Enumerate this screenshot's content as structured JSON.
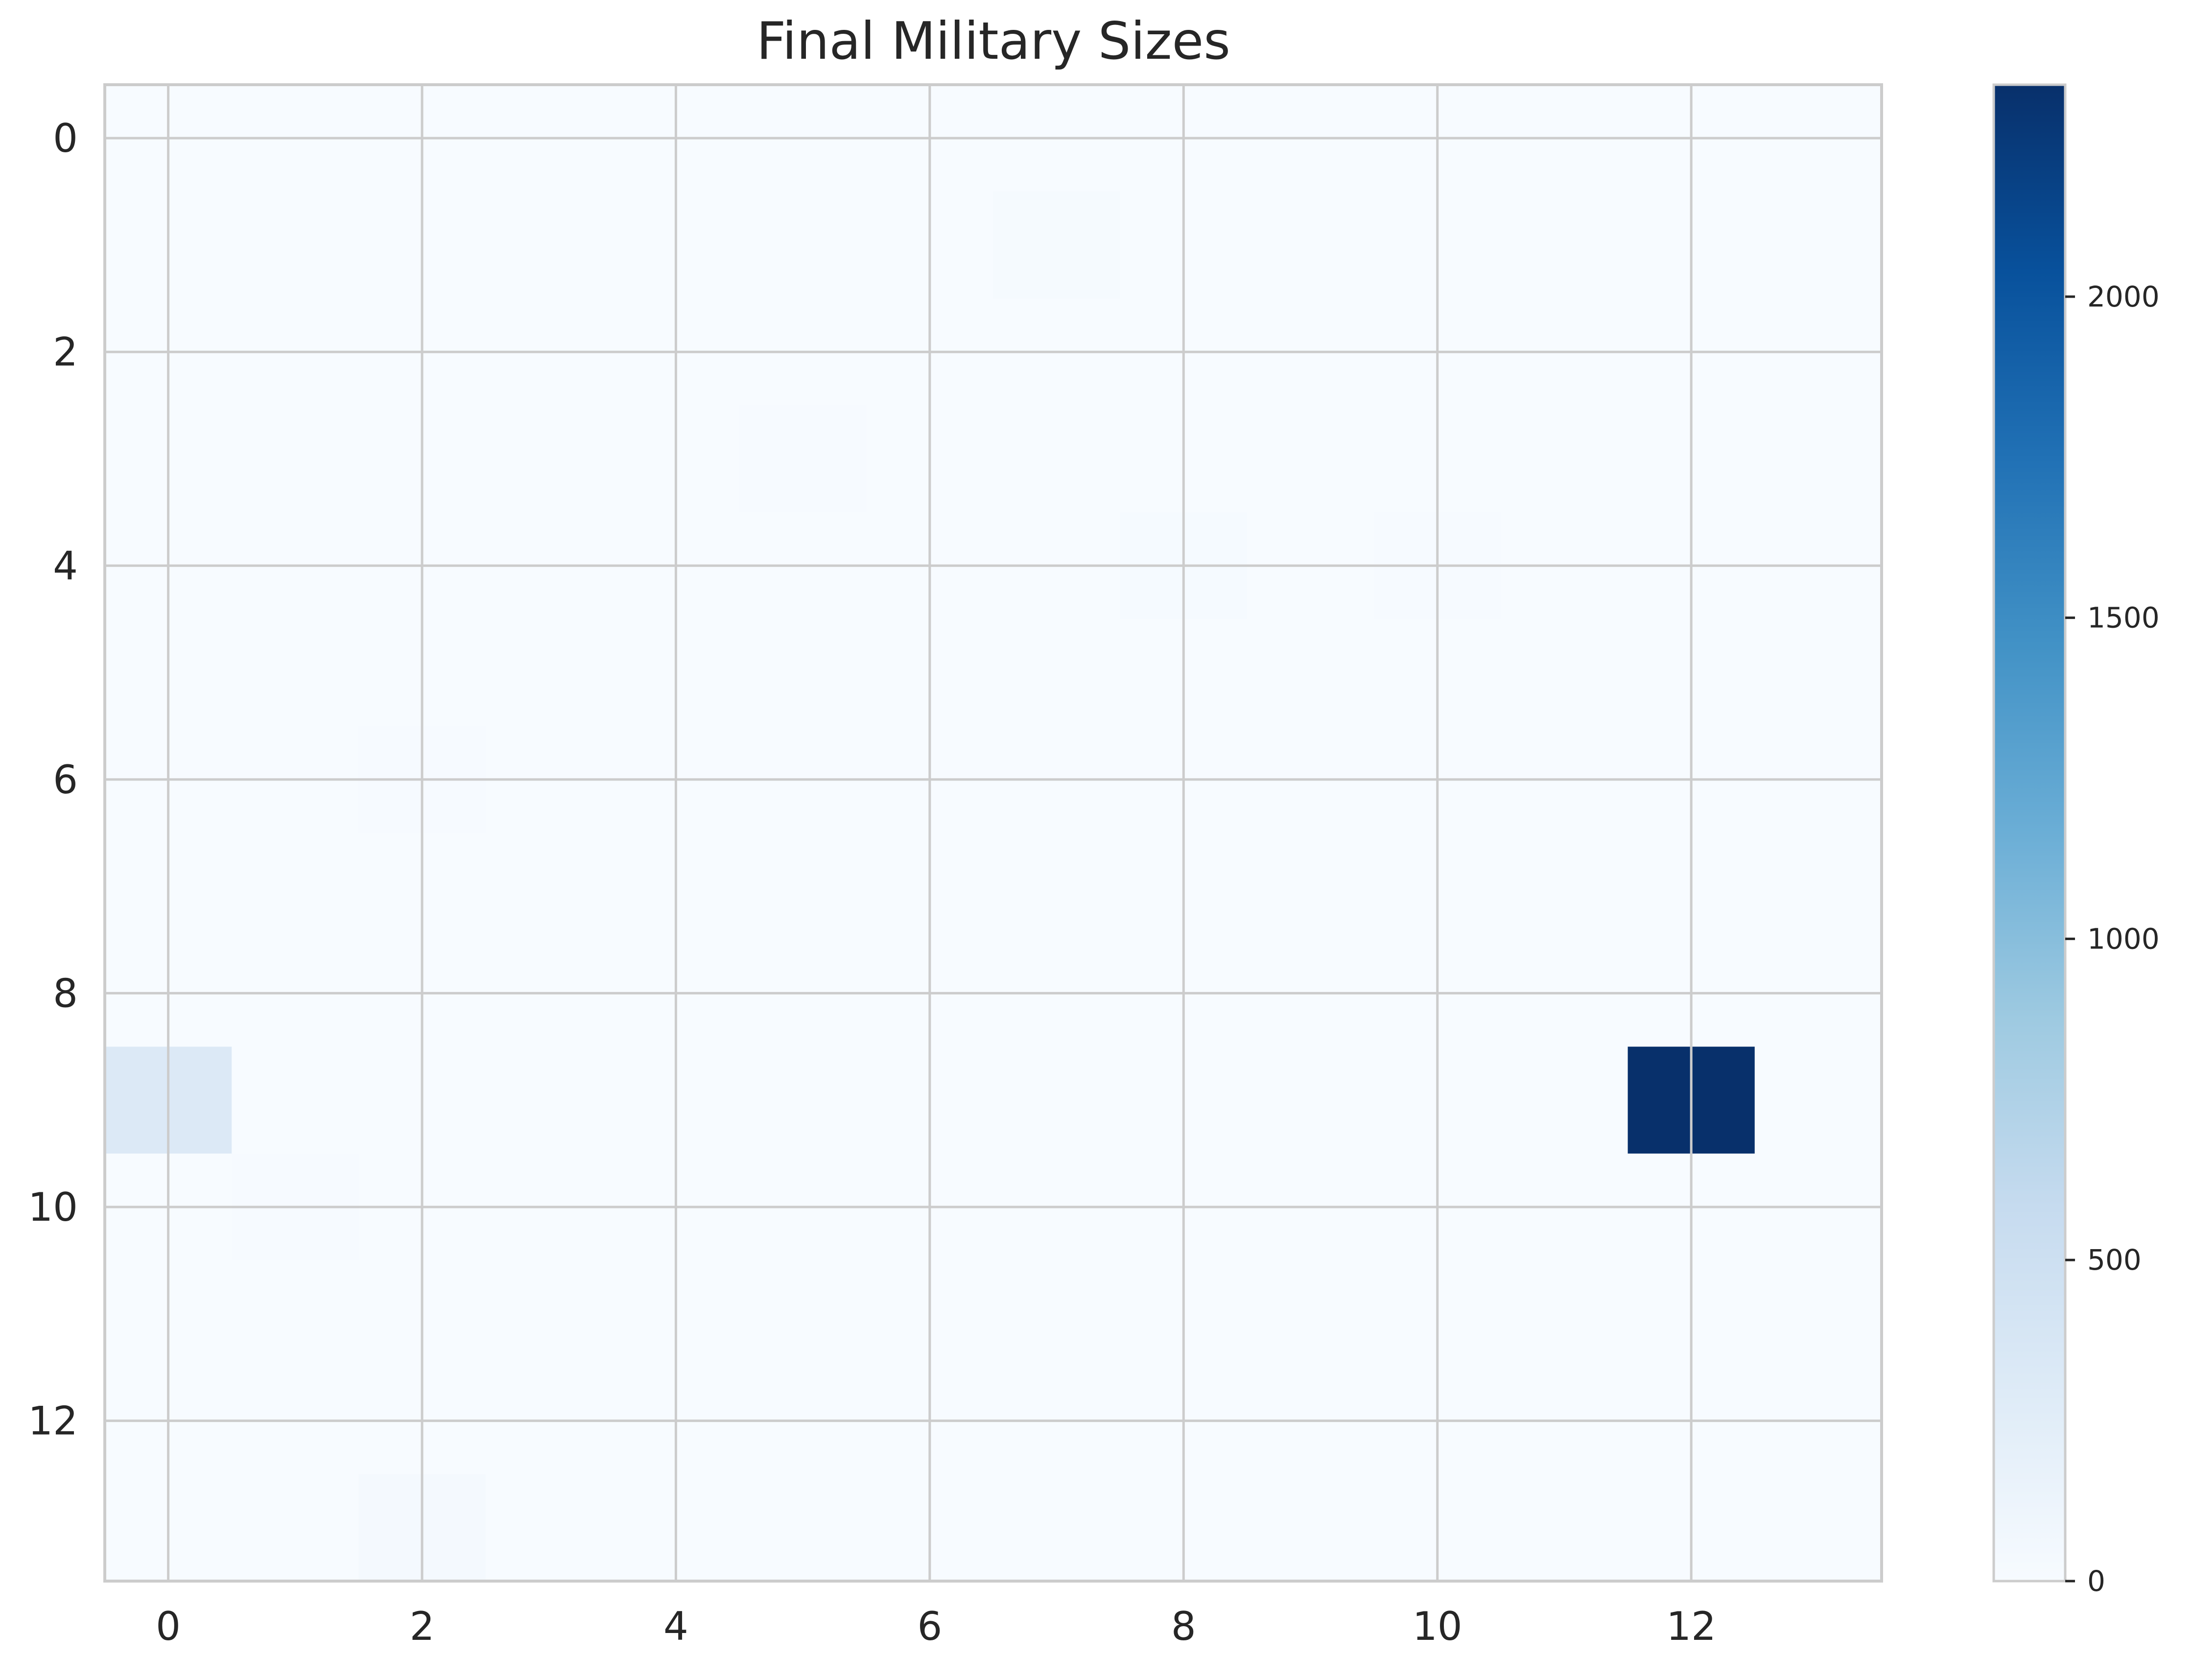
{
  "chart_data": {
    "type": "heatmap",
    "title": "Final Military Sizes",
    "xlabel": "",
    "ylabel": "",
    "shape": [
      14,
      14
    ],
    "xlim": [
      -0.5,
      13.5
    ],
    "ylim": [
      13.5,
      -0.5
    ],
    "x_ticks": [
      0,
      2,
      4,
      6,
      8,
      10,
      12
    ],
    "y_ticks": [
      0,
      2,
      4,
      6,
      8,
      10,
      12
    ],
    "x_tick_labels": [
      "0",
      "2",
      "4",
      "6",
      "8",
      "10",
      "12"
    ],
    "y_tick_labels": [
      "0",
      "2",
      "4",
      "6",
      "8",
      "10",
      "12"
    ],
    "grid": true,
    "colormap": "Blues",
    "value_range": [
      0,
      2330
    ],
    "colorbar": {
      "ticks": [
        0,
        500,
        1000,
        1500,
        2000
      ],
      "tick_labels": [
        "0",
        "500",
        "1000",
        "1500",
        "2000"
      ]
    },
    "background_value": 0,
    "cells": [
      {
        "row": 1,
        "col": 7,
        "value": 20
      },
      {
        "row": 3,
        "col": 5,
        "value": 15
      },
      {
        "row": 4,
        "col": 8,
        "value": 18
      },
      {
        "row": 4,
        "col": 10,
        "value": 15
      },
      {
        "row": 6,
        "col": 2,
        "value": 12
      },
      {
        "row": 9,
        "col": 0,
        "value": 320
      },
      {
        "row": 9,
        "col": 12,
        "value": 2330
      },
      {
        "row": 10,
        "col": 1,
        "value": 15
      },
      {
        "row": 13,
        "col": 2,
        "value": 30
      }
    ]
  }
}
